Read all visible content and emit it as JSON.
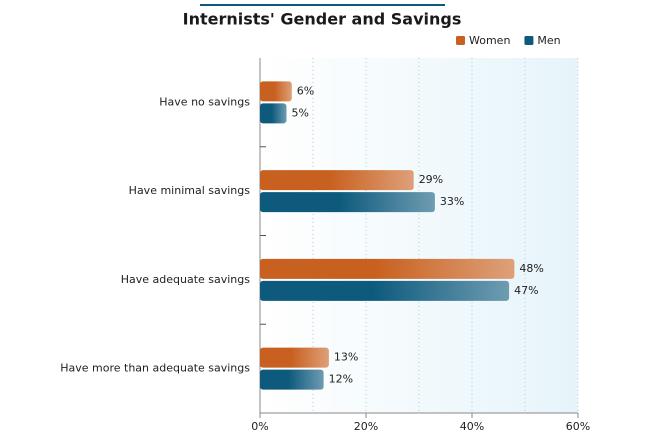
{
  "chart_data": {
    "type": "hbar",
    "title": "Internists' Gender and Savings",
    "categories": [
      "Have no savings",
      "Have minimal savings",
      "Have adequate savings",
      "Have more than adequate savings"
    ],
    "series": [
      {
        "name": "Women",
        "color": "#c8601f",
        "values": [
          6,
          29,
          48,
          13
        ],
        "value_labels": [
          "6%",
          "29%",
          "48%",
          "13%"
        ]
      },
      {
        "name": "Men",
        "color": "#0d5a7d",
        "values": [
          5,
          33,
          47,
          12
        ],
        "value_labels": [
          "5%",
          "33%",
          "47%",
          "12%"
        ]
      }
    ],
    "xlim": [
      0,
      60
    ],
    "xticks": [
      {
        "value": 0,
        "label": "0%"
      },
      {
        "value": 20,
        "label": "20%"
      },
      {
        "value": 40,
        "label": "40%"
      },
      {
        "value": 60,
        "label": "60%"
      }
    ],
    "minor_xticks": [
      10,
      30,
      50
    ],
    "grid": true,
    "legend": "top-right"
  }
}
